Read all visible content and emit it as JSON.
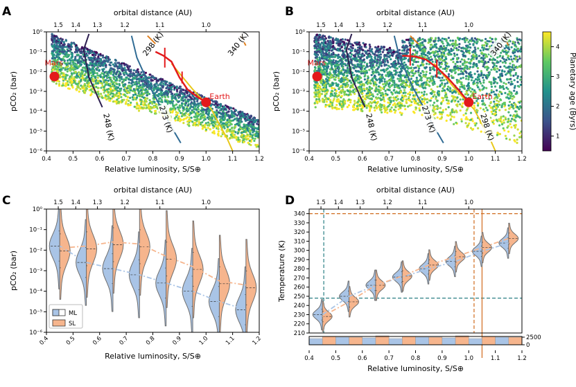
{
  "colorbar": {
    "label": "Planetary age (Byrs)",
    "ticks": [
      "1",
      "2",
      "3",
      "4"
    ],
    "min": 0.5,
    "max": 4.5,
    "colors": [
      "#440154",
      "#3b528b",
      "#21918c",
      "#5ec962",
      "#fde725"
    ]
  },
  "chart_data": [
    {
      "id": "A",
      "type": "scatter",
      "title": "orbital distance (AU)",
      "xlabel": "Relative luminosity, S/S⊕",
      "ylabel": "pCO₂ (bar)",
      "xlim": [
        0.4,
        1.2
      ],
      "ylim_log10": [
        -6,
        0
      ],
      "x_ticks": [
        "0.4",
        "0.5",
        "0.6",
        "0.7",
        "0.8",
        "0.9",
        "1.0",
        "1.1",
        "1.2"
      ],
      "y_ticks": [
        "10⁻⁶",
        "10⁻⁵",
        "10⁻⁴",
        "10⁻³",
        "10⁻²",
        "10⁻¹",
        "10⁰"
      ],
      "top_ticks": [
        "1.5",
        "1.4",
        "1.3",
        "1.2",
        "1.1",
        "1.0"
      ],
      "planets": [
        {
          "name": "Mars",
          "x": 0.43,
          "y_log10": -2.25
        },
        {
          "name": "Earth",
          "x": 1.0,
          "y_log10": -3.55
        }
      ],
      "isotherms": [
        {
          "label": "248 (K)"
        },
        {
          "label": "273 (K)"
        },
        {
          "label": "298 (K)"
        },
        {
          "label": "340 (K)"
        }
      ]
    },
    {
      "id": "B",
      "type": "scatter",
      "title": "orbital distance (AU)",
      "xlabel": "Relative luminosity, S/S⊕",
      "ylabel": "pCO₂ (bar)",
      "xlim": [
        0.4,
        1.2
      ],
      "ylim_log10": [
        -6,
        0
      ],
      "x_ticks": [
        "0.4",
        "0.5",
        "0.6",
        "0.7",
        "0.8",
        "0.9",
        "1.0",
        "1.1",
        "1.2"
      ],
      "y_ticks": [
        "10⁻⁶",
        "10⁻⁵",
        "10⁻⁴",
        "10⁻³",
        "10⁻²",
        "10⁻¹",
        "10⁰"
      ],
      "top_ticks": [
        "1.5",
        "1.4",
        "1.3",
        "1.2",
        "1.1",
        "1.0"
      ],
      "planets": [
        {
          "name": "Mars",
          "x": 0.43,
          "y_log10": -2.25
        },
        {
          "name": "Earth",
          "x": 1.0,
          "y_log10": -3.55
        }
      ],
      "isotherms": [
        {
          "label": "248 (K)"
        },
        {
          "label": "273 (K)"
        },
        {
          "label": "298 (K)"
        },
        {
          "label": "340 (K)"
        }
      ]
    },
    {
      "id": "C",
      "type": "violin",
      "title": "orbital distance (AU)",
      "xlabel": "Relative luminosity, S/S⊕",
      "ylabel": "pCO₂ (bar)",
      "xlim": [
        0.4,
        1.2
      ],
      "ylim_log10": [
        -6,
        0
      ],
      "x_ticks": [
        "0.4",
        "0.5",
        "0.6",
        "0.7",
        "0.8",
        "0.9",
        "1.0",
        "1.1",
        "1.2"
      ],
      "y_ticks": [
        "10⁻⁶",
        "10⁻⁵",
        "10⁻⁴",
        "10⁻³",
        "10⁻²",
        "10⁻¹",
        "10⁰"
      ],
      "top_ticks": [
        "1.5",
        "1.4",
        "1.3",
        "1.2",
        "1.1",
        "1.0"
      ],
      "legend": [
        "ML",
        "SL"
      ],
      "bins": [
        0.45,
        0.55,
        0.65,
        0.75,
        0.85,
        0.95,
        1.05,
        1.15
      ],
      "ML_median_log10": [
        -1.8,
        -2.6,
        -2.9,
        -3.2,
        -3.6,
        -4.0,
        -4.5,
        -4.9
      ],
      "SL_median_log10": [
        -1.9,
        -1.8,
        -1.6,
        -1.7,
        -2.3,
        -2.8,
        -3.5,
        -3.7
      ]
    },
    {
      "id": "D",
      "type": "violin",
      "title": "orbital distance (AU)",
      "xlabel": "Relative luminosity, S/S⊕",
      "ylabel": "Temperature (K)",
      "xlim": [
        0.4,
        1.2
      ],
      "ylim": [
        210,
        345
      ],
      "x_ticks": [
        "0.4",
        "0.5",
        "0.6",
        "0.7",
        "0.8",
        "0.9",
        "1.0",
        "1.1",
        "1.2"
      ],
      "y_ticks": [
        "210",
        "220",
        "230",
        "240",
        "250",
        "260",
        "270",
        "280",
        "290",
        "300",
        "310",
        "320",
        "330",
        "340"
      ],
      "top_ticks": [
        "1.5",
        "1.4",
        "1.3",
        "1.2",
        "1.1",
        "1.0"
      ],
      "bins": [
        0.45,
        0.55,
        0.65,
        0.75,
        0.85,
        0.95,
        1.05,
        1.15
      ],
      "ML_median": [
        230,
        250,
        262,
        271,
        280,
        288,
        299,
        308
      ],
      "SL_median": [
        228,
        244,
        262,
        272,
        284,
        293,
        303,
        313
      ],
      "hist_ticks": [
        "2500",
        "0"
      ]
    }
  ]
}
